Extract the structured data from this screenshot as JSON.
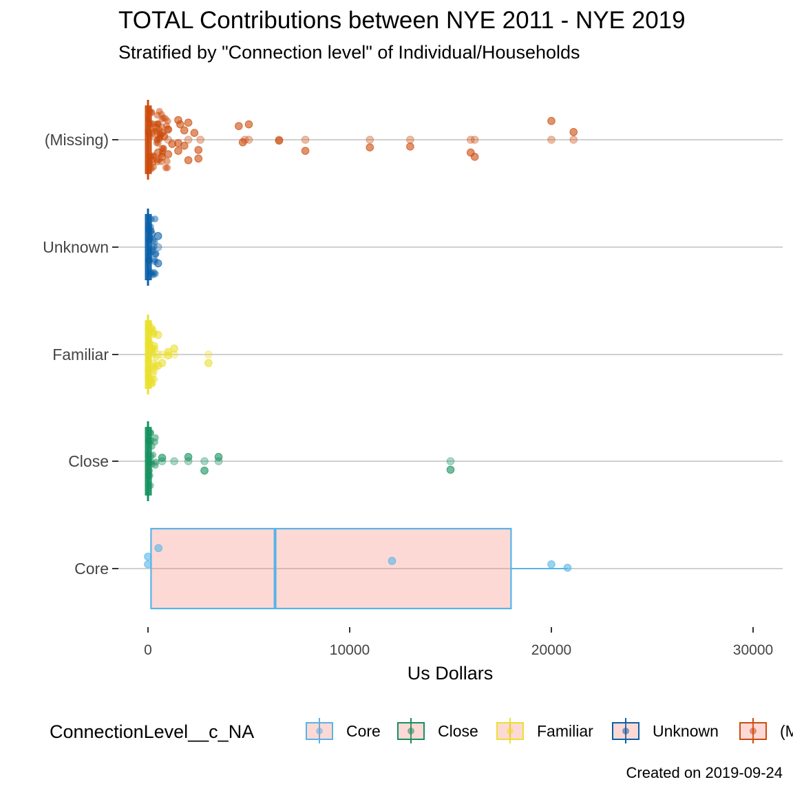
{
  "chart_data": {
    "type": "boxplot",
    "orientation": "horizontal",
    "title": "TOTAL Contributions between NYE 2011 - NYE 2019",
    "subtitle": "Stratified by \"Connection level\" of Individual/Households",
    "caption": "Created on 2019-09-24",
    "xlabel": "Us Dollars",
    "ylabel": "",
    "xlim": [
      -800,
      31500
    ],
    "x_ticks": [
      0,
      10000,
      20000,
      30000
    ],
    "x_tick_labels": [
      "0",
      "10000",
      "20000",
      "30000"
    ],
    "grid": "horizontal major lines only",
    "legend_title": "ConnectionLevel__c_NA",
    "legend_position": "bottom",
    "categories_bottom_to_top": [
      "Core",
      "Close",
      "Familiar",
      "Unknown",
      "(Missing)"
    ],
    "legend_order": [
      "Core",
      "Close",
      "Familiar",
      "Unknown",
      "(Missing)"
    ],
    "colors": {
      "Core": "#56B4E9",
      "Close": "#15905E",
      "Familiar": "#EAE02E",
      "Unknown": "#0A5FA8",
      "(Missing)": "#CC4B0C"
    },
    "box_fill": "#F8766D",
    "series": [
      {
        "name": "Core",
        "box": {
          "min": 0,
          "q1": 150,
          "median": 6300,
          "q3": 18000,
          "max": 20800
        },
        "points": [
          {
            "x": 0,
            "y": 0.05
          },
          {
            "x": 0,
            "y": 0.14
          },
          {
            "x": 520,
            "y": 0.24
          },
          {
            "x": 12100,
            "y": 0.09
          },
          {
            "x": 20000,
            "y": 0.05
          },
          {
            "x": 20800,
            "y": 0.01
          }
        ]
      },
      {
        "name": "Close",
        "box": {
          "min": 0,
          "q1": 0,
          "median": 0,
          "q3": 25,
          "max": 50
        },
        "points": [
          {
            "x": 100,
            "y": 0.24
          },
          {
            "x": 700,
            "y": 0.04
          },
          {
            "x": 1300,
            "y": 0.0
          },
          {
            "x": 2000,
            "y": 0.05
          },
          {
            "x": 2800,
            "y": -0.11
          },
          {
            "x": 3500,
            "y": 0.05
          },
          {
            "x": 15000,
            "y": 0.0
          },
          {
            "x": 15000,
            "y": -0.1
          },
          {
            "x": 2000,
            "y": 0.0
          },
          {
            "x": 3500,
            "y": 0.0
          },
          {
            "x": 2800,
            "y": 0.0
          },
          {
            "x": 700,
            "y": 0.0
          }
        ]
      },
      {
        "name": "Familiar",
        "box": {
          "min": 0,
          "q1": 0,
          "median": 0,
          "q3": 50,
          "max": 100
        },
        "points": [
          {
            "x": 500,
            "y": 0.23
          },
          {
            "x": 300,
            "y": 0.1
          },
          {
            "x": 1300,
            "y": 0.07
          },
          {
            "x": 1000,
            "y": 0.03
          },
          {
            "x": 1000,
            "y": -0.01
          },
          {
            "x": 3000,
            "y": 0.0
          },
          {
            "x": 3000,
            "y": -0.1
          },
          {
            "x": 700,
            "y": -0.1
          },
          {
            "x": 500,
            "y": -0.13
          },
          {
            "x": 1300,
            "y": 0.0
          },
          {
            "x": 500,
            "y": 0.0
          },
          {
            "x": 700,
            "y": 0.0
          }
        ]
      },
      {
        "name": "Unknown",
        "box": {
          "min": 0,
          "q1": 0,
          "median": 0,
          "q3": 25,
          "max": 50
        },
        "points": [
          {
            "x": 500,
            "y": 0.13
          },
          {
            "x": 500,
            "y": 0.0
          },
          {
            "x": 500,
            "y": -0.19
          }
        ]
      },
      {
        "name": "(Missing)",
        "box": {
          "min": 0,
          "q1": 0,
          "median": 0,
          "q3": 100,
          "max": 200
        },
        "points": [
          {
            "x": 1500,
            "y": 0.23
          },
          {
            "x": 2000,
            "y": 0.2
          },
          {
            "x": 1600,
            "y": 0.18
          },
          {
            "x": 4500,
            "y": 0.16
          },
          {
            "x": 5000,
            "y": 0.18
          },
          {
            "x": 1000,
            "y": 0.12
          },
          {
            "x": 2300,
            "y": 0.08
          },
          {
            "x": 700,
            "y": 0.08
          },
          {
            "x": 1800,
            "y": 0.11
          },
          {
            "x": 4700,
            "y": -0.03
          },
          {
            "x": 6500,
            "y": -0.01
          },
          {
            "x": 6500,
            "y": 0.0
          },
          {
            "x": 4800,
            "y": 0.0
          },
          {
            "x": 5000,
            "y": 0.0
          },
          {
            "x": 7800,
            "y": 0.0
          },
          {
            "x": 7800,
            "y": -0.13
          },
          {
            "x": 11000,
            "y": 0.0
          },
          {
            "x": 11000,
            "y": -0.09
          },
          {
            "x": 13000,
            "y": 0.0
          },
          {
            "x": 13000,
            "y": -0.08
          },
          {
            "x": 16000,
            "y": 0.0
          },
          {
            "x": 16200,
            "y": 0.0
          },
          {
            "x": 16000,
            "y": -0.15
          },
          {
            "x": 16200,
            "y": -0.2
          },
          {
            "x": 20000,
            "y": 0.22
          },
          {
            "x": 20000,
            "y": 0.0
          },
          {
            "x": 21100,
            "y": 0.09
          },
          {
            "x": 21100,
            "y": 0.0
          },
          {
            "x": 1800,
            "y": -0.07
          },
          {
            "x": 2500,
            "y": -0.12
          },
          {
            "x": 1500,
            "y": -0.04
          },
          {
            "x": 1200,
            "y": -0.05
          },
          {
            "x": 2000,
            "y": -0.24
          },
          {
            "x": 2500,
            "y": -0.22
          },
          {
            "x": 1500,
            "y": -0.13
          },
          {
            "x": 1000,
            "y": -0.17
          },
          {
            "x": 700,
            "y": -0.2
          },
          {
            "x": 500,
            "y": -0.15
          },
          {
            "x": 400,
            "y": 0.14
          },
          {
            "x": 800,
            "y": 0.04
          },
          {
            "x": 1000,
            "y": 0.0
          },
          {
            "x": 2000,
            "y": 0.0
          },
          {
            "x": 2600,
            "y": 0.0
          }
        ]
      }
    ]
  }
}
